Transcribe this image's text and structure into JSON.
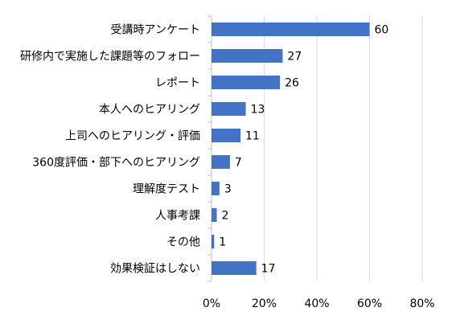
{
  "chart_data": {
    "type": "bar",
    "orientation": "horizontal",
    "title": "",
    "xlabel": "",
    "ylabel": "",
    "categories": [
      "受講時アンケート",
      "研修内で実施した課題等のフォロー",
      "レポート",
      "本人へのヒアリング",
      "上司へのヒアリング・評価",
      "360度評価・部下へのヒアリング",
      "理解度テスト",
      "人事考課",
      "その他",
      "効果検証はしない"
    ],
    "values": [
      60,
      27,
      26,
      13,
      11,
      7,
      3,
      2,
      1,
      17
    ],
    "value_labels": [
      "60",
      "27",
      "26",
      "13",
      "11",
      "7",
      "3",
      "2",
      "1",
      "17"
    ],
    "xlim": [
      0,
      80
    ],
    "x_ticks": [
      0,
      20,
      40,
      60,
      80
    ],
    "x_tick_labels": [
      "0%",
      "20%",
      "40%",
      "60%",
      "80%"
    ],
    "grid": true,
    "bar_color": "#4472c4"
  }
}
